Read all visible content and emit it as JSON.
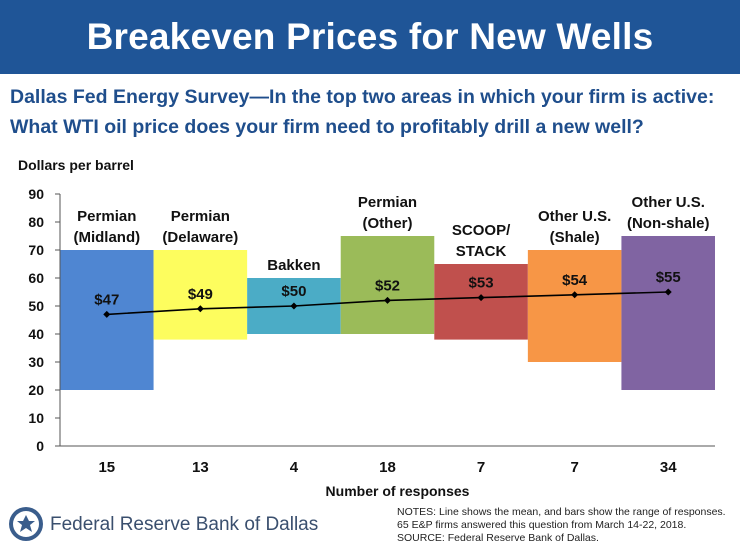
{
  "header": {
    "title": "Breakeven Prices for New Wells",
    "question": "Dallas Fed Energy Survey—In the top two areas in which your firm is active: What WTI oil price does your firm need to profitably drill a new well?"
  },
  "chart_data": {
    "type": "bar",
    "title": "",
    "ylabel": "Dollars per barrel",
    "xlabel": "Number of responses",
    "ylim": [
      0,
      90
    ],
    "yticks": [
      "0",
      "10",
      "20",
      "30",
      "40",
      "50",
      "60",
      "70",
      "80",
      "90"
    ],
    "categories": [
      "15",
      "13",
      "4",
      "18",
      "7",
      "7",
      "34"
    ],
    "region_labels": [
      [
        "Permian",
        "(Midland)"
      ],
      [
        "Permian",
        "(Delaware)"
      ],
      [
        "Bakken"
      ],
      [
        "Permian",
        "(Other)"
      ],
      [
        "SCOOP/",
        "STACK"
      ],
      [
        "Other U.S.",
        "(Shale)"
      ],
      [
        "Other U.S.",
        "(Non-shale)"
      ]
    ],
    "range_low": [
      20,
      38,
      40,
      40,
      38,
      30,
      20
    ],
    "range_high": [
      70,
      70,
      60,
      75,
      65,
      70,
      75
    ],
    "mean": [
      47,
      49,
      50,
      52,
      53,
      54,
      55
    ],
    "mean_labels": [
      "$47",
      "$49",
      "$50",
      "$52",
      "$53",
      "$54",
      "$55"
    ],
    "bar_colors": [
      "#4f86d2",
      "#fdfd5e",
      "#4bacc6",
      "#9bbb59",
      "#c0504d",
      "#f79646",
      "#8064a2"
    ],
    "grid": false
  },
  "footer": {
    "org": "Federal Reserve Bank of Dallas",
    "notes": [
      "NOTES: Line shows the mean, and bars show the range of responses.",
      "65 E&P firms answered this question from March 14-22, 2018.",
      "SOURCE: Federal Reserve Bank of Dallas."
    ]
  }
}
